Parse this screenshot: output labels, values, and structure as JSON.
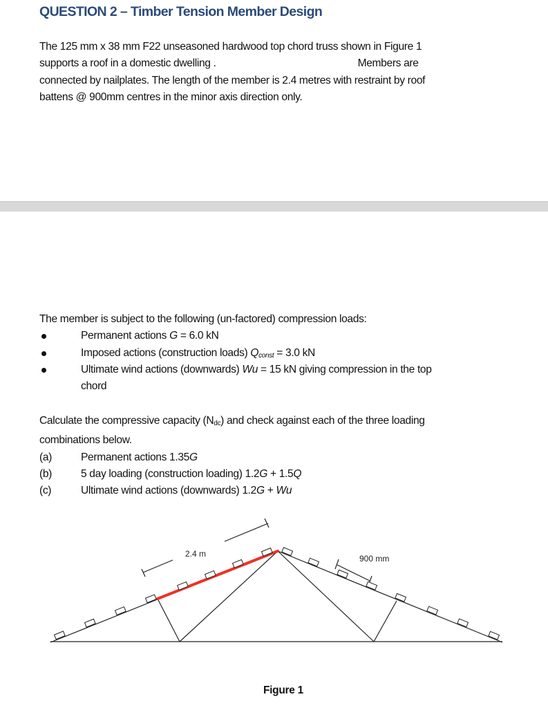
{
  "title": "QUESTION 2 – Timber Tension Member Design",
  "intro": {
    "line1": "The 125 mm x 38 mm F22 unseasoned hardwood top chord truss shown in Figure 1",
    "line2a": "supports a roof in a domestic dwelling .",
    "line2b": "Members are",
    "line3": "connected by nailplates. The length of the member is 2.4 metres with restraint by roof",
    "line4": "battens @ 900mm centres in the minor axis direction only."
  },
  "loads": {
    "heading": "The member is subject to the following (un-factored) compression loads:",
    "items": [
      {
        "pre": "Permanent actions ",
        "var": "G",
        "sub": "",
        "post": " = 6.0 kN"
      },
      {
        "pre": "Imposed actions (construction loads) ",
        "var": "Q",
        "sub": "const",
        "post": " = 3.0 kN"
      },
      {
        "pre": "Ultimate wind actions (downwards) ",
        "var": "Wu",
        "sub": "",
        "post": " = 15 kN giving compression in the top",
        "cont": "chord"
      }
    ]
  },
  "task": {
    "line1a": "Calculate the compressive capacity (N",
    "line1sub": "dc",
    "line1b": ") and check against each of the three loading",
    "line2": "combinations below.",
    "combos": [
      {
        "label": "(a)",
        "pre": "Permanent actions 1.35",
        "var": "G",
        "post": ""
      },
      {
        "label": "(b)",
        "pre": "5 day loading (construction loading) 1.2",
        "var": "G",
        "post": " + 1.5",
        "var2": "Q"
      },
      {
        "label": "(c)",
        "pre": "Ultimate wind actions (downwards) 1.2",
        "var": "G",
        "post": " + ",
        "var2": "Wu"
      }
    ]
  },
  "figure": {
    "member_length_label": "2.4 m",
    "batten_spacing_label": "900 mm",
    "caption": "Figure 1",
    "highlight_color": "#ee3124"
  }
}
